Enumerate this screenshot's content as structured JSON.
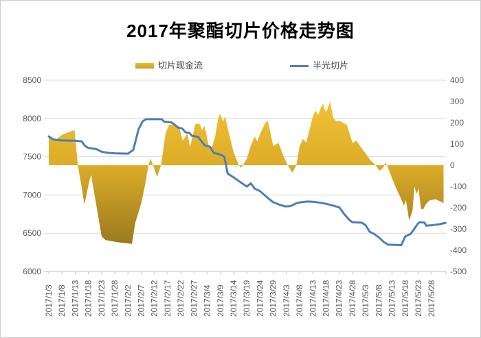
{
  "page": {
    "background": "#ffffff",
    "border_color": "#cccccc"
  },
  "chart_data": {
    "type": "area+line combo, dual axis",
    "title": "2017年聚酯切片价格走势图",
    "x_unit": "tick_index (0 = 2017/1/3, 1 tick = 5 days)",
    "x_tick_labels": [
      "2017/1/3",
      "2017/1/8",
      "2017/1/13",
      "2017/1/18",
      "2017/1/23",
      "2017/1/28",
      "2017/2/2",
      "2017/2/7",
      "2017/2/12",
      "2017/2/17",
      "2017/2/22",
      "2017/2/27",
      "2017/3/4",
      "2017/3/9",
      "2017/3/14",
      "2017/3/19",
      "2017/3/24",
      "2017/3/29",
      "2017/4/3",
      "2017/4/8",
      "2017/4/13",
      "2017/4/18",
      "2017/4/23",
      "2017/4/28",
      "2017/5/3",
      "2017/5/8",
      "2017/5/13",
      "2017/5/18",
      "2017/5/23",
      "2017/5/28"
    ],
    "left_axis": {
      "min": 6000,
      "max": 8500,
      "step": 500,
      "tick_labels": [
        "8500",
        "8000",
        "7500",
        "7000",
        "6500",
        "6000"
      ]
    },
    "right_axis": {
      "min": -500,
      "max": 400,
      "step": 100,
      "tick_labels": [
        "400",
        "300",
        "200",
        "100",
        "0",
        "-100",
        "-200",
        "-300",
        "-400",
        "-500"
      ]
    },
    "legend": {
      "position": "top",
      "items": [
        {
          "label": "切片现金流",
          "type": "area",
          "color": "#e3b32c"
        },
        {
          "label": "半光切片",
          "type": "line",
          "color": "#4e7db6"
        }
      ]
    },
    "grid": {
      "show_horizontal": true,
      "color": "#d9d9d9",
      "axis_line_color": "#bfbfbf",
      "label_color": "#595959"
    },
    "series": [
      {
        "name": "切片现金流",
        "axis": "right",
        "type": "area",
        "gradient_top": "#f2c438",
        "gradient_mid": "#dcab28",
        "gradient_bottom": "#96771d",
        "points": [
          [
            0,
            140
          ],
          [
            0.5,
            120
          ],
          [
            1,
            143
          ],
          [
            1.6,
            158
          ],
          [
            1.95,
            165
          ],
          [
            2.2,
            0
          ],
          [
            2.45,
            -90
          ],
          [
            2.7,
            -185
          ],
          [
            3,
            -95
          ],
          [
            3.2,
            -45
          ],
          [
            3.5,
            -150
          ],
          [
            4,
            -335
          ],
          [
            4.3,
            -352
          ],
          [
            5.2,
            -362
          ],
          [
            6.3,
            -370
          ],
          [
            6.55,
            -270
          ],
          [
            7,
            -180
          ],
          [
            7.3,
            -90
          ],
          [
            7.55,
            0
          ],
          [
            7.7,
            32
          ],
          [
            7.9,
            0
          ],
          [
            8.2,
            -55
          ],
          [
            8.5,
            0
          ],
          [
            8.85,
            150
          ],
          [
            9.1,
            190
          ],
          [
            9.5,
            192
          ],
          [
            9.85,
            185
          ],
          [
            10.15,
            115
          ],
          [
            10.5,
            152
          ],
          [
            10.7,
            85
          ],
          [
            11.1,
            195
          ],
          [
            11.45,
            193
          ],
          [
            11.6,
            165
          ],
          [
            11.8,
            185
          ],
          [
            12.1,
            95
          ],
          [
            12.35,
            85
          ],
          [
            12.6,
            135
          ],
          [
            12.85,
            228
          ],
          [
            13,
            240
          ],
          [
            13.2,
            205
          ],
          [
            13.35,
            230
          ],
          [
            13.6,
            163
          ],
          [
            14,
            60
          ],
          [
            14.4,
            0
          ],
          [
            14.55,
            -12
          ],
          [
            14.7,
            0
          ],
          [
            15,
            30
          ],
          [
            15.3,
            92
          ],
          [
            15.6,
            135
          ],
          [
            15.8,
            112
          ],
          [
            16,
            147
          ],
          [
            16.4,
            200
          ],
          [
            16.6,
            207
          ],
          [
            17,
            90
          ],
          [
            17.4,
            105
          ],
          [
            17.8,
            40
          ],
          [
            18.1,
            0
          ],
          [
            18.45,
            -35
          ],
          [
            18.75,
            0
          ],
          [
            19,
            90
          ],
          [
            19.25,
            123
          ],
          [
            19.5,
            107
          ],
          [
            19.8,
            180
          ],
          [
            20,
            230
          ],
          [
            20.2,
            258
          ],
          [
            20.4,
            236
          ],
          [
            20.6,
            270
          ],
          [
            20.78,
            290
          ],
          [
            20.95,
            252
          ],
          [
            21.1,
            262
          ],
          [
            21.3,
            300
          ],
          [
            21.55,
            222
          ],
          [
            21.8,
            205
          ],
          [
            22,
            210
          ],
          [
            22.35,
            198
          ],
          [
            22.6,
            188
          ],
          [
            23,
            105
          ],
          [
            23.3,
            115
          ],
          [
            23.65,
            84
          ],
          [
            24,
            55
          ],
          [
            24.35,
            25
          ],
          [
            24.75,
            0
          ],
          [
            25.05,
            -26
          ],
          [
            25.35,
            -10
          ],
          [
            25.5,
            13
          ],
          [
            25.62,
            0
          ],
          [
            26,
            -62
          ],
          [
            26.4,
            -120
          ],
          [
            26.7,
            -160
          ],
          [
            26.9,
            -190
          ],
          [
            27.05,
            -162
          ],
          [
            27.3,
            -260
          ],
          [
            27.55,
            -215
          ],
          [
            27.7,
            -100
          ],
          [
            27.85,
            -135
          ],
          [
            28,
            -110
          ],
          [
            28.2,
            -205
          ],
          [
            28.35,
            -208
          ],
          [
            28.6,
            -180
          ],
          [
            28.85,
            -165
          ],
          [
            29.3,
            -160
          ],
          [
            29.9,
            -178
          ]
        ]
      },
      {
        "name": "半光切片",
        "axis": "left",
        "type": "line",
        "color": "#4e7db6",
        "width": 3,
        "points": [
          [
            0,
            7765
          ],
          [
            0.3,
            7730
          ],
          [
            0.6,
            7718
          ],
          [
            1,
            7712
          ],
          [
            2,
            7710
          ],
          [
            2.5,
            7700
          ],
          [
            2.75,
            7640
          ],
          [
            3,
            7615
          ],
          [
            3.6,
            7600
          ],
          [
            4,
            7565
          ],
          [
            4.5,
            7550
          ],
          [
            5,
            7545
          ],
          [
            6,
            7540
          ],
          [
            6.4,
            7590
          ],
          [
            6.8,
            7860
          ],
          [
            7.1,
            7960
          ],
          [
            7.35,
            7990
          ],
          [
            8.55,
            7990
          ],
          [
            8.75,
            7958
          ],
          [
            9.25,
            7952
          ],
          [
            9.5,
            7925
          ],
          [
            9.8,
            7880
          ],
          [
            10.1,
            7870
          ],
          [
            10.35,
            7820
          ],
          [
            10.65,
            7812
          ],
          [
            10.85,
            7772
          ],
          [
            11.3,
            7760
          ],
          [
            11.5,
            7718
          ],
          [
            11.8,
            7650
          ],
          [
            12.2,
            7632
          ],
          [
            12.5,
            7550
          ],
          [
            13,
            7528
          ],
          [
            13.3,
            7500
          ],
          [
            13.55,
            7280
          ],
          [
            14,
            7230
          ],
          [
            14.6,
            7158
          ],
          [
            15,
            7110
          ],
          [
            15.3,
            7152
          ],
          [
            15.6,
            7082
          ],
          [
            16,
            7050
          ],
          [
            16.6,
            6960
          ],
          [
            17,
            6905
          ],
          [
            17.45,
            6875
          ],
          [
            17.9,
            6850
          ],
          [
            18.3,
            6855
          ],
          [
            18.8,
            6895
          ],
          [
            19.1,
            6905
          ],
          [
            19.6,
            6915
          ],
          [
            20.1,
            6910
          ],
          [
            21,
            6885
          ],
          [
            21.5,
            6862
          ],
          [
            22,
            6840
          ],
          [
            22.4,
            6745
          ],
          [
            22.8,
            6668
          ],
          [
            23,
            6645
          ],
          [
            23.7,
            6638
          ],
          [
            24,
            6605
          ],
          [
            24.3,
            6520
          ],
          [
            24.65,
            6490
          ],
          [
            25,
            6445
          ],
          [
            25.4,
            6382
          ],
          [
            25.7,
            6350
          ],
          [
            26.7,
            6345
          ],
          [
            27,
            6460
          ],
          [
            27.4,
            6490
          ],
          [
            27.7,
            6560
          ],
          [
            27.95,
            6625
          ],
          [
            28.1,
            6645
          ],
          [
            28.45,
            6640
          ],
          [
            28.6,
            6598
          ],
          [
            29,
            6605
          ],
          [
            29.6,
            6618
          ],
          [
            30.05,
            6635
          ]
        ]
      }
    ]
  }
}
